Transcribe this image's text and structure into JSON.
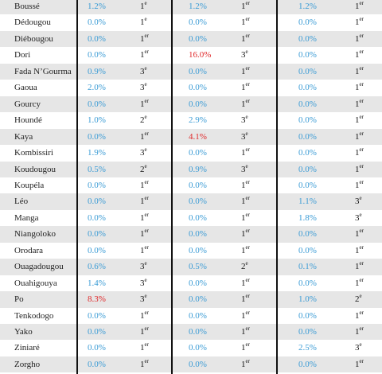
{
  "table": {
    "rows": [
      {
        "name": "Boussé",
        "cells": [
          {
            "value": "1.2%",
            "num": "1",
            "sup": "e"
          },
          {
            "value": "1.2%",
            "num": "1",
            "sup": "er"
          },
          {
            "value": "1.2%",
            "num": "1",
            "sup": "er"
          }
        ]
      },
      {
        "name": "Dédougou",
        "cells": [
          {
            "value": "0.0%",
            "num": "1",
            "sup": "e"
          },
          {
            "value": "0.0%",
            "num": "1",
            "sup": "er"
          },
          {
            "value": "0.0%",
            "num": "1",
            "sup": "er"
          }
        ]
      },
      {
        "name": "Diébougou",
        "cells": [
          {
            "value": "0.0%",
            "num": "1",
            "sup": "er"
          },
          {
            "value": "0.0%",
            "num": "1",
            "sup": "er"
          },
          {
            "value": "0.0%",
            "num": "1",
            "sup": "er"
          }
        ]
      },
      {
        "name": "Dori",
        "cells": [
          {
            "value": "0.0%",
            "num": "1",
            "sup": "er"
          },
          {
            "value": "16.0%",
            "num": "3",
            "sup": "e",
            "highlight": true
          },
          {
            "value": "0.0%",
            "num": "1",
            "sup": "er"
          }
        ]
      },
      {
        "name": "Fada N’Gourma",
        "cells": [
          {
            "value": "0.9%",
            "num": "3",
            "sup": "e"
          },
          {
            "value": "0.0%",
            "num": "1",
            "sup": "er"
          },
          {
            "value": "0.0%",
            "num": "1",
            "sup": "er"
          }
        ]
      },
      {
        "name": "Gaoua",
        "cells": [
          {
            "value": "2.0%",
            "num": "3",
            "sup": "e"
          },
          {
            "value": "0.0%",
            "num": "1",
            "sup": "er"
          },
          {
            "value": "0.0%",
            "num": "1",
            "sup": "er"
          }
        ]
      },
      {
        "name": "Gourcy",
        "cells": [
          {
            "value": "0.0%",
            "num": "1",
            "sup": "er"
          },
          {
            "value": "0.0%",
            "num": "1",
            "sup": "er"
          },
          {
            "value": "0.0%",
            "num": "1",
            "sup": "er"
          }
        ]
      },
      {
        "name": "Houndé",
        "cells": [
          {
            "value": "1.0%",
            "num": "2",
            "sup": "e"
          },
          {
            "value": "2.9%",
            "num": "3",
            "sup": "e"
          },
          {
            "value": "0.0%",
            "num": "1",
            "sup": "er"
          }
        ]
      },
      {
        "name": "Kaya",
        "cells": [
          {
            "value": "0.0%",
            "num": "1",
            "sup": "er"
          },
          {
            "value": "4.1%",
            "num": "3",
            "sup": "e",
            "highlight": true
          },
          {
            "value": "0.0%",
            "num": "1",
            "sup": "er"
          }
        ]
      },
      {
        "name": "Kombissiri",
        "cells": [
          {
            "value": "1.9%",
            "num": "3",
            "sup": "e"
          },
          {
            "value": "0.0%",
            "num": "1",
            "sup": "er"
          },
          {
            "value": "0.0%",
            "num": "1",
            "sup": "er"
          }
        ]
      },
      {
        "name": "Koudougou",
        "cells": [
          {
            "value": "0.5%",
            "num": "2",
            "sup": "e"
          },
          {
            "value": "0.9%",
            "num": "3",
            "sup": "e"
          },
          {
            "value": "0.0%",
            "num": "1",
            "sup": "er"
          }
        ]
      },
      {
        "name": "Koupéla",
        "cells": [
          {
            "value": "0.0%",
            "num": "1",
            "sup": "er"
          },
          {
            "value": "0.0%",
            "num": "1",
            "sup": "er"
          },
          {
            "value": "0.0%",
            "num": "1",
            "sup": "er"
          }
        ]
      },
      {
        "name": "Léo",
        "cells": [
          {
            "value": "0.0%",
            "num": "1",
            "sup": "er"
          },
          {
            "value": "0.0%",
            "num": "1",
            "sup": "er"
          },
          {
            "value": "1.1%",
            "num": "3",
            "sup": "e"
          }
        ]
      },
      {
        "name": "Manga",
        "cells": [
          {
            "value": "0.0%",
            "num": "1",
            "sup": "er"
          },
          {
            "value": "0.0%",
            "num": "1",
            "sup": "er"
          },
          {
            "value": "1.8%",
            "num": "3",
            "sup": "e"
          }
        ]
      },
      {
        "name": "Niangoloko",
        "cells": [
          {
            "value": "0.0%",
            "num": "1",
            "sup": "er"
          },
          {
            "value": "0.0%",
            "num": "1",
            "sup": "er"
          },
          {
            "value": "0.0%",
            "num": "1",
            "sup": "er"
          }
        ]
      },
      {
        "name": "Orodara",
        "cells": [
          {
            "value": "0.0%",
            "num": "1",
            "sup": "er"
          },
          {
            "value": "0.0%",
            "num": "1",
            "sup": "er"
          },
          {
            "value": "0.0%",
            "num": "1",
            "sup": "er"
          }
        ]
      },
      {
        "name": "Ouagadougou",
        "cells": [
          {
            "value": "0.6%",
            "num": "3",
            "sup": "e"
          },
          {
            "value": "0.5%",
            "num": "2",
            "sup": "e"
          },
          {
            "value": "0.1%",
            "num": "1",
            "sup": "er"
          }
        ]
      },
      {
        "name": "Ouahigouya",
        "cells": [
          {
            "value": "1.4%",
            "num": "3",
            "sup": "e"
          },
          {
            "value": "0.0%",
            "num": "1",
            "sup": "er"
          },
          {
            "value": "0.0%",
            "num": "1",
            "sup": "er"
          }
        ]
      },
      {
        "name": "Po",
        "cells": [
          {
            "value": "8.3%",
            "num": "3",
            "sup": "e",
            "highlight": true
          },
          {
            "value": "0.0%",
            "num": "1",
            "sup": "er"
          },
          {
            "value": "1.0%",
            "num": "2",
            "sup": "e"
          }
        ]
      },
      {
        "name": "Tenkodogo",
        "cells": [
          {
            "value": "0.0%",
            "num": "1",
            "sup": "er"
          },
          {
            "value": "0.0%",
            "num": "1",
            "sup": "er"
          },
          {
            "value": "0.0%",
            "num": "1",
            "sup": "er"
          }
        ]
      },
      {
        "name": "Yako",
        "cells": [
          {
            "value": "0.0%",
            "num": "1",
            "sup": "er"
          },
          {
            "value": "0.0%",
            "num": "1",
            "sup": "er"
          },
          {
            "value": "0.0%",
            "num": "1",
            "sup": "er"
          }
        ]
      },
      {
        "name": "Ziniaré",
        "cells": [
          {
            "value": "0.0%",
            "num": "1",
            "sup": "er"
          },
          {
            "value": "0.0%",
            "num": "1",
            "sup": "er"
          },
          {
            "value": "2.5%",
            "num": "3",
            "sup": "e"
          }
        ]
      },
      {
        "name": "Zorgho",
        "cells": [
          {
            "value": "0.0%",
            "num": "1",
            "sup": "er"
          },
          {
            "value": "0.0%",
            "num": "1",
            "sup": "er"
          },
          {
            "value": "0.0%",
            "num": "1",
            "sup": "er"
          }
        ]
      }
    ]
  }
}
